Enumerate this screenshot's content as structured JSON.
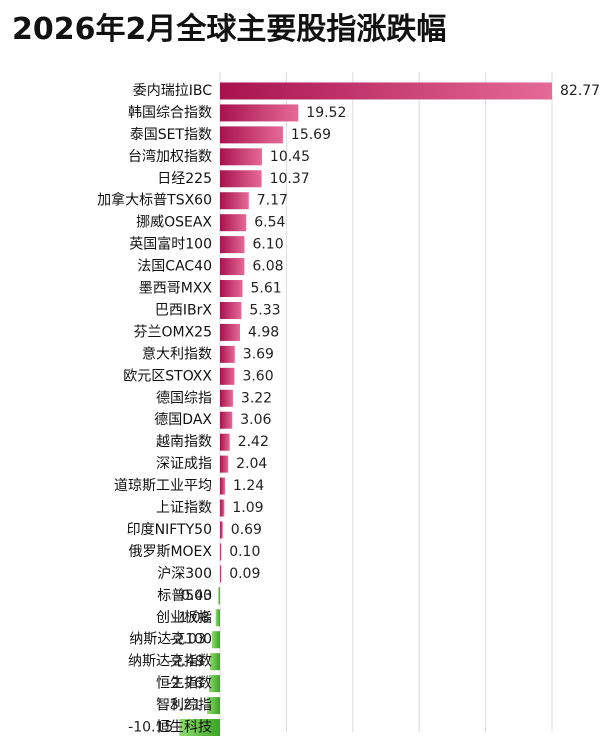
{
  "chart_data": {
    "type": "bar",
    "orientation": "horizontal",
    "title": "2026年2月全球主要股指涨跌幅",
    "xlabel": "",
    "ylabel": "",
    "xlim": [
      -11,
      90
    ],
    "grid": true,
    "legend": "none",
    "categories": [
      "委内瑞拉IBC",
      "韩国综合指数",
      "泰国SET指数",
      "台湾加权指数",
      "日经225",
      "加拿大标普TSX60",
      "挪威OSEAX",
      "英国富时100",
      "法国CAC40",
      "墨西哥MXX",
      "巴西IBrX",
      "芬兰OMX25",
      "意大利指数",
      "欧元区STOXX",
      "德国综指",
      "德国DAX",
      "越南指数",
      "深证成指",
      "道琼斯工业平均",
      "上证指数",
      "印度NIFTY50",
      "俄罗斯MOEX",
      "沪深300",
      "标普500",
      "创业板指",
      "纳斯达克100",
      "纳斯达克指数",
      "恒生指数",
      "智利综指",
      "恒生科技"
    ],
    "values": [
      82.77,
      19.52,
      15.69,
      10.45,
      10.37,
      7.17,
      6.54,
      6.1,
      6.08,
      5.61,
      5.33,
      4.98,
      3.69,
      3.6,
      3.22,
      3.06,
      2.42,
      2.04,
      1.24,
      1.09,
      0.69,
      0.1,
      0.09,
      -0.43,
      -1.08,
      -2.03,
      -2.49,
      -2.76,
      -3.21,
      -10.15
    ],
    "value_labels": [
      "82.77",
      "19.52",
      "15.69",
      "10.45",
      "10.37",
      "7.17",
      "6.54",
      "6.10",
      "6.08",
      "5.61",
      "5.33",
      "4.98",
      "3.69",
      "3.60",
      "3.22",
      "3.06",
      "2.42",
      "2.04",
      "1.24",
      "1.09",
      "0.69",
      "0.10",
      "0.09",
      "-0.43",
      "-1.08",
      "-2.03",
      "-2.49",
      "-2.76",
      "-3.21",
      "-10.15"
    ],
    "colors": {
      "positive_dark": "#a8124e",
      "positive_light": "#e56a97",
      "negative_dark": "#3aa324",
      "negative_light": "#8fdc6e",
      "grid": "#dddddd"
    }
  }
}
